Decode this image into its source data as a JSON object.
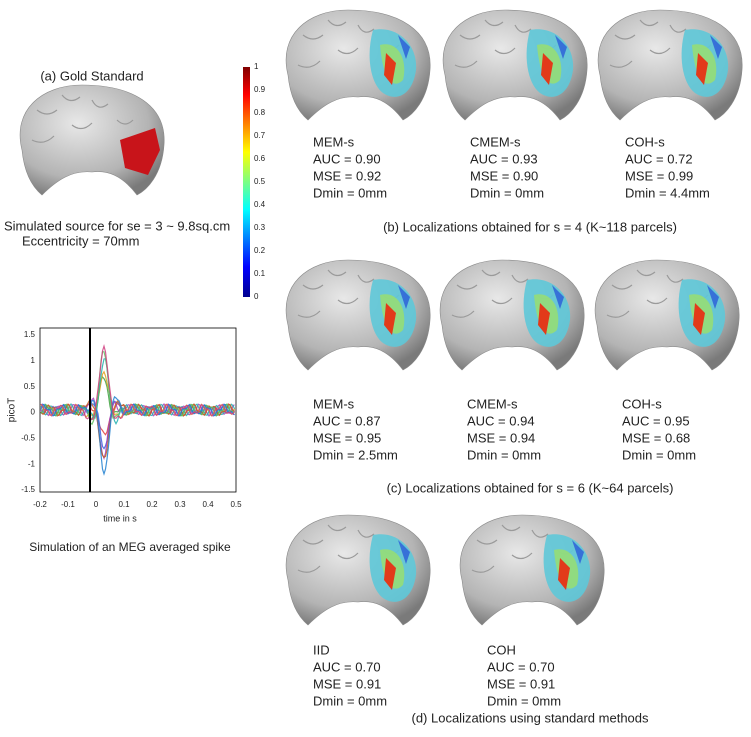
{
  "gold_standard": {
    "title": "(a) Gold Standard",
    "caption": "Simulated source for se = 3 ~ 9.8sq.cm",
    "eccentricity": "Eccentricity = 70mm"
  },
  "colorbar": {
    "ticks": [
      1,
      0.9,
      0.8,
      0.7,
      0.6,
      0.5,
      0.4,
      0.3,
      0.2,
      0.1,
      0
    ]
  },
  "meg_plot": {
    "ylabel": "picoT",
    "xlabel": "time in s",
    "yticks": [
      1.5,
      1,
      0.5,
      0,
      -0.5,
      -1,
      -1.5
    ],
    "xticks": [
      -0.2,
      -0.1,
      0,
      0.1,
      0.2,
      0.3,
      0.4,
      0.5
    ],
    "caption": "Simulation of an MEG averaged spike"
  },
  "sections": [
    {
      "caption": "(b) Localizations obtained for s = 4 (K~118 parcels)",
      "methods": [
        {
          "name": "MEM-s",
          "lines": [
            "AUC = 0.90",
            "MSE = 0.92",
            "Dmin = 0mm"
          ]
        },
        {
          "name": "CMEM-s",
          "lines": [
            "AUC = 0.93",
            "MSE = 0.90",
            "Dmin = 0mm"
          ]
        },
        {
          "name": "COH-s",
          "lines": [
            "AUC = 0.72",
            "MSE = 0.99",
            "Dmin = 4.4mm"
          ]
        }
      ]
    },
    {
      "caption": "(c) Localizations obtained for s = 6 (K~64 parcels)",
      "methods": [
        {
          "name": "MEM-s",
          "lines": [
            "AUC = 0.87",
            "MSE = 0.95",
            "Dmin = 2.5mm"
          ]
        },
        {
          "name": "CMEM-s",
          "lines": [
            "AUC = 0.94",
            "MSE = 0.94",
            "Dmin = 0mm"
          ]
        },
        {
          "name": "COH-s",
          "lines": [
            "AUC = 0.95",
            "MSE = 0.68",
            "Dmin = 0mm"
          ]
        }
      ]
    },
    {
      "caption": "(d) Localizations using standard methods",
      "methods": [
        {
          "name": "IID",
          "lines": [
            "AUC = 0.70",
            "MSE = 0.91",
            "Dmin = 0mm"
          ]
        },
        {
          "name": "COH",
          "lines": [
            "AUC = 0.70",
            "MSE = 0.91",
            "Dmin = 0mm"
          ]
        }
      ]
    }
  ]
}
